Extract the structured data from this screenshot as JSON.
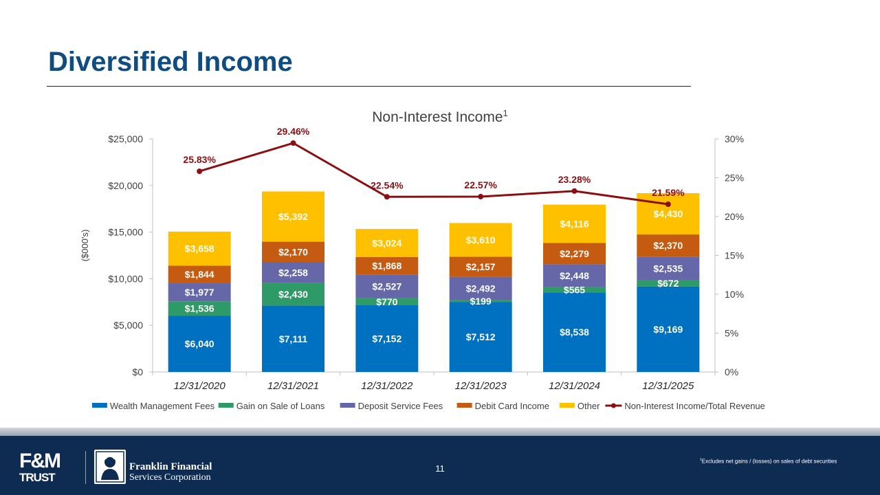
{
  "slide": {
    "title": "Diversified Income",
    "page_number": "11",
    "footnote_marker": "1",
    "footnote_text": "Excludes net gains / (losses) on sales of debt securities"
  },
  "branding": {
    "fm_logo_top": "F&M",
    "fm_logo_bottom": "TRUST",
    "corp_line1": "Franklin Financial",
    "corp_line2": "Services Corporation"
  },
  "colors": {
    "title": "#0f4c81",
    "footer": "#0e2c52",
    "line": "#8b0e10"
  },
  "chart_data": {
    "type": "bar",
    "stacked": true,
    "title": "Non-Interest Income",
    "title_superscript": "1",
    "ylabel": "($000's)",
    "y2label": "",
    "ylim": [
      0,
      25000
    ],
    "yticks": [
      0,
      5000,
      10000,
      15000,
      20000,
      25000
    ],
    "ytick_labels": [
      "$0",
      "$5,000",
      "$10,000",
      "$15,000",
      "$20,000",
      "$25,000"
    ],
    "y2lim": [
      0,
      30
    ],
    "y2ticks": [
      0,
      5,
      10,
      15,
      20,
      25,
      30
    ],
    "y2tick_labels": [
      "0%",
      "5%",
      "10%",
      "15%",
      "20%",
      "25%",
      "30%"
    ],
    "grid": false,
    "legend_position": "bottom",
    "categories": [
      "12/31/2020",
      "12/31/2021",
      "12/31/2022",
      "12/31/2023",
      "12/31/2024",
      "12/31/2025"
    ],
    "series": [
      {
        "name": "Wealth Management Fees",
        "color": "#0070c0",
        "values": [
          6040,
          7111,
          7152,
          7512,
          8538,
          9169
        ],
        "labels": [
          "$6,040",
          "$7,111",
          "$7,152",
          "$7,512",
          "$8,538",
          "$9,169"
        ]
      },
      {
        "name": "Gain on Sale of Loans",
        "color": "#2e9a68",
        "values": [
          1536,
          2430,
          770,
          199,
          565,
          672
        ],
        "labels": [
          "$1,536",
          "$2,430",
          "$770",
          "$199",
          "$565",
          "$672"
        ]
      },
      {
        "name": "Deposit Service Fees",
        "color": "#6667a9",
        "values": [
          1977,
          2258,
          2527,
          2492,
          2448,
          2535
        ],
        "labels": [
          "$1,977",
          "$2,258",
          "$2,527",
          "$2,492",
          "$2,448",
          "$2,535"
        ]
      },
      {
        "name": "Debit Card Income",
        "color": "#c55a11",
        "values": [
          1844,
          2170,
          1868,
          2157,
          2279,
          2370
        ],
        "labels": [
          "$1,844",
          "$2,170",
          "$1,868",
          "$2,157",
          "$2,279",
          "$2,370"
        ]
      },
      {
        "name": "Other",
        "color": "#ffc000",
        "values": [
          3658,
          5392,
          3024,
          3610,
          4116,
          4430
        ],
        "labels": [
          "$3,658",
          "$5,392",
          "$3,024",
          "$3,610",
          "$4,116",
          "$4,430"
        ]
      }
    ],
    "line_series": {
      "name": "Non-Interest Income/Total Revenue",
      "color": "#8b0e10",
      "axis": "secondary",
      "values": [
        25.83,
        29.46,
        22.54,
        22.57,
        23.28,
        21.59
      ],
      "labels": [
        "25.83%",
        "29.46%",
        "22.54%",
        "22.57%",
        "23.28%",
        "21.59%"
      ]
    }
  }
}
